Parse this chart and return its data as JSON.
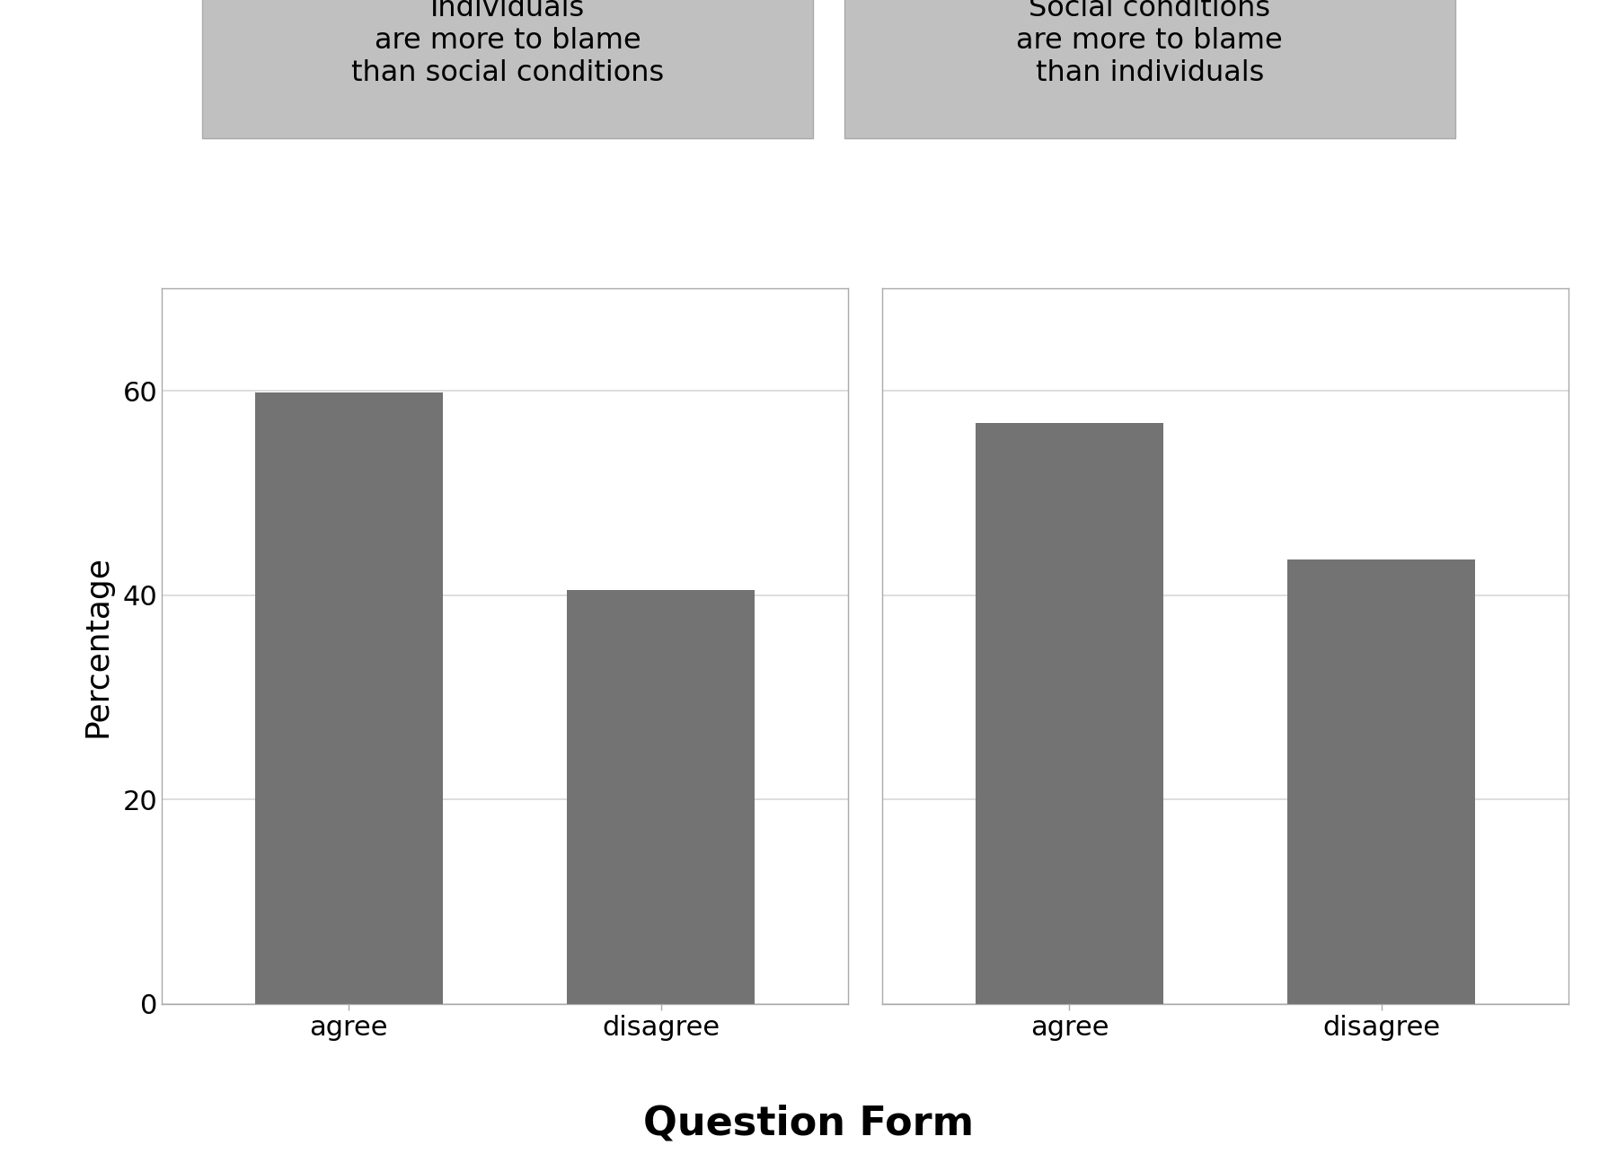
{
  "panel1_title": "Individuals\nare more to blame\nthan social conditions",
  "panel2_title": "Social conditions\nare more to blame\nthan individuals",
  "panel1_values": [
    59.8,
    40.5
  ],
  "panel2_values": [
    56.8,
    43.5
  ],
  "categories": [
    "agree",
    "disagree"
  ],
  "bar_color": "#737373",
  "bar_width": 0.6,
  "ylim": [
    0,
    70
  ],
  "yticks": [
    0,
    20,
    40,
    60
  ],
  "ylabel": "Percentage",
  "xlabel": "Question Form",
  "title_bg_color": "#c0c0c0",
  "plot_bg_color": "#ffffff",
  "fig_bg_color": "#ffffff",
  "grid_color": "#d8d8d8",
  "ylabel_fontsize": 26,
  "xlabel_fontsize": 32,
  "tick_fontsize": 22,
  "panel_title_fontsize": 23,
  "spine_color": "#aaaaaa"
}
